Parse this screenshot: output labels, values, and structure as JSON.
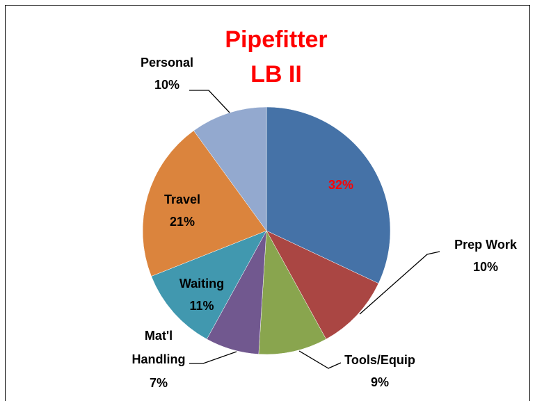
{
  "chart_data": {
    "type": "pie",
    "title": [
      "Pipefitter",
      "LB II"
    ],
    "categories": [
      null,
      "Prep Work",
      "Tools/Equip",
      "Mat'l Handling",
      "Waiting",
      "Travel",
      "Personal"
    ],
    "values": [
      32,
      10,
      9,
      7,
      11,
      21,
      10
    ],
    "value_labels": [
      "32%",
      "10%",
      "9%",
      "7%",
      "11%",
      "21%",
      "10%"
    ],
    "colors": [
      "#4572a7",
      "#aa4643",
      "#89a54e",
      "#71588f",
      "#4198af",
      "#db843d",
      "#93a9cf"
    ]
  }
}
